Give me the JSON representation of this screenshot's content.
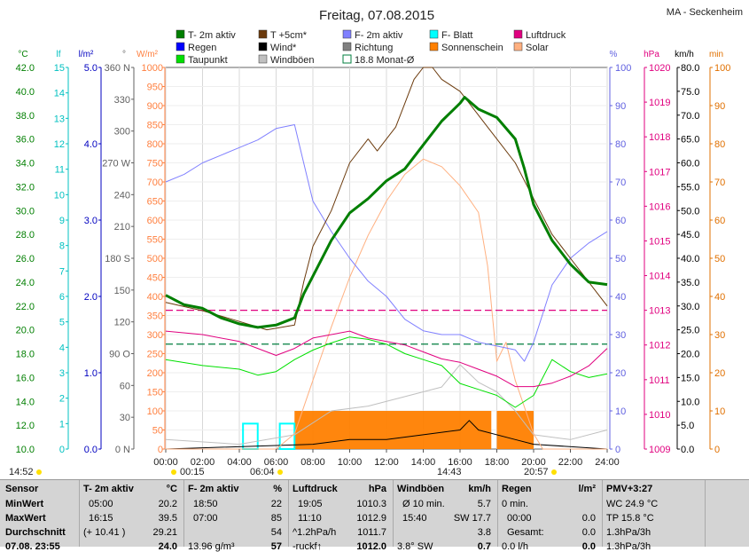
{
  "header": {
    "date": "Freitag, 07.08.2015",
    "location": "MA - Seckenheim"
  },
  "legend": [
    {
      "label": "T- 2m aktiv",
      "color": "#007f00",
      "kind": "fill"
    },
    {
      "label": "T +5cm*",
      "color": "#6b3a0c",
      "kind": "fill"
    },
    {
      "label": "F- 2m aktiv",
      "color": "#8080ff",
      "kind": "fill"
    },
    {
      "label": "F- Blatt",
      "color": "#00ffff",
      "kind": "fill"
    },
    {
      "label": "Luftdruck",
      "color": "#e0007f",
      "kind": "fill"
    },
    {
      "label": "Regen",
      "color": "#0000ff",
      "kind": "fill"
    },
    {
      "label": "Wind*",
      "color": "#000000",
      "kind": "fill"
    },
    {
      "label": "Richtung",
      "color": "#808080",
      "kind": "fill"
    },
    {
      "label": "Sonnenschein",
      "color": "#ff8000",
      "kind": "fill"
    },
    {
      "label": "Solar",
      "color": "#ffb080",
      "kind": "fill"
    },
    {
      "label": "Taupunkt",
      "color": "#00e000",
      "kind": "fill"
    },
    {
      "label": "Windböen",
      "color": "#c0c0c0",
      "kind": "fill"
    },
    {
      "label": "18.8 Monat-Ø",
      "color": "#007f3f",
      "kind": "outline"
    }
  ],
  "axes": {
    "temp": {
      "unit": "°C",
      "ticks": [
        "42.0",
        "40.0",
        "38.0",
        "36.0",
        "34.0",
        "32.0",
        "30.0",
        "28.0",
        "26.0",
        "24.0",
        "22.0",
        "20.0",
        "18.0",
        "16.0",
        "14.0",
        "12.0",
        "10.0"
      ],
      "color": "#007f00"
    },
    "lf": {
      "unit": "lf",
      "ticks": [
        "15",
        "14",
        "13",
        "12",
        "11",
        "10",
        "9",
        "8",
        "7",
        "6",
        "5",
        "4",
        "3",
        "2",
        "1",
        "0"
      ],
      "color": "#00c0c0"
    },
    "rain": {
      "unit": "l/m²",
      "ticks": [
        "5.0",
        "4.0",
        "3.0",
        "2.0",
        "1.0",
        "0.0"
      ],
      "color": "#0000c0"
    },
    "dir": {
      "unit": "°",
      "ticks": [
        "360 N",
        "330",
        "300",
        "270 W",
        "240",
        "210",
        "180 S",
        "150",
        "120",
        "90 O",
        "60",
        "30",
        "0 N"
      ],
      "color": "#606060"
    },
    "solar": {
      "unit": "W/m²",
      "ticks": [
        "1000",
        "950",
        "900",
        "850",
        "800",
        "750",
        "700",
        "650",
        "600",
        "550",
        "500",
        "450",
        "400",
        "350",
        "300",
        "250",
        "200",
        "150",
        "100",
        "50",
        "0"
      ],
      "color": "#ff8040"
    },
    "hum": {
      "unit": "%",
      "ticks": [
        "100",
        "90",
        "80",
        "70",
        "60",
        "50",
        "40",
        "30",
        "20",
        "10",
        "0"
      ],
      "color": "#6060e0"
    },
    "press": {
      "unit": "hPa",
      "ticks": [
        "1020",
        "1019",
        "1018",
        "1017",
        "1016",
        "1015",
        "1014",
        "1013",
        "1012",
        "1011",
        "1010",
        "1009"
      ],
      "color": "#e0007f"
    },
    "wind": {
      "unit": "km/h",
      "ticks": [
        "80.0",
        "75.0",
        "70.0",
        "65.0",
        "60.0",
        "55.0",
        "50.0",
        "45.0",
        "40.0",
        "35.0",
        "30.0",
        "25.0",
        "20.0",
        "15.0",
        "10.0",
        "5.0",
        "0.0"
      ],
      "color": "#000000"
    },
    "min": {
      "unit": "min",
      "ticks": [
        "100",
        "90",
        "80",
        "70",
        "60",
        "50",
        "40",
        "30",
        "20",
        "10",
        "0"
      ],
      "color": "#e07000"
    }
  },
  "x_ticks": [
    "00:00",
    "02:00",
    "04:00",
    "06:00",
    "08:00",
    "10:00",
    "12:00",
    "14:00",
    "16:00",
    "18:00",
    "20:00",
    "22:00",
    "24:00"
  ],
  "markers": {
    "left_time": "14:52",
    "m1": "00:15",
    "m2": "06:04",
    "m3": "14:43",
    "m4": "20:57"
  },
  "chart_data": {
    "type": "line",
    "title": "Freitag, 07.08.2015",
    "x_unit": "hours",
    "xlim": [
      0,
      24
    ],
    "series": [
      {
        "name": "T- 2m aktiv",
        "unit": "°C",
        "color": "#007f00",
        "width": 3,
        "points": [
          [
            0,
            22.9
          ],
          [
            1,
            22.1
          ],
          [
            2,
            21.8
          ],
          [
            3,
            21.0
          ],
          [
            4,
            20.5
          ],
          [
            5,
            20.2
          ],
          [
            6,
            20.4
          ],
          [
            7,
            21.0
          ],
          [
            7.5,
            23.0
          ],
          [
            8,
            24.5
          ],
          [
            9,
            27.5
          ],
          [
            10,
            29.8
          ],
          [
            11,
            31.0
          ],
          [
            12,
            32.5
          ],
          [
            13,
            33.5
          ],
          [
            14,
            35.5
          ],
          [
            15,
            37.5
          ],
          [
            16,
            39.0
          ],
          [
            16.25,
            39.5
          ],
          [
            17,
            38.5
          ],
          [
            18,
            37.8
          ],
          [
            19,
            36.0
          ],
          [
            19.5,
            33.5
          ],
          [
            20,
            30.5
          ],
          [
            21,
            27.5
          ],
          [
            22,
            25.5
          ],
          [
            23,
            24.0
          ],
          [
            24,
            23.8
          ]
        ]
      },
      {
        "name": "T +5cm*",
        "unit": "°C",
        "color": "#6b3a0c",
        "width": 1,
        "points": [
          [
            0,
            22.3
          ],
          [
            2,
            21.6
          ],
          [
            4,
            20.7
          ],
          [
            5.5,
            20.0
          ],
          [
            7,
            20.4
          ],
          [
            7.5,
            24
          ],
          [
            8,
            27
          ],
          [
            9,
            30
          ],
          [
            10,
            34
          ],
          [
            11,
            36
          ],
          [
            11.5,
            35
          ],
          [
            12,
            36
          ],
          [
            12.5,
            37
          ],
          [
            13,
            39
          ],
          [
            13.5,
            41
          ],
          [
            14,
            43
          ],
          [
            14.5,
            43
          ],
          [
            15,
            41
          ],
          [
            16,
            40
          ],
          [
            17,
            38
          ],
          [
            17.5,
            37
          ],
          [
            18,
            36
          ],
          [
            19,
            34
          ],
          [
            20,
            31
          ],
          [
            21,
            28
          ],
          [
            22,
            26
          ],
          [
            23,
            24
          ],
          [
            24,
            22
          ]
        ]
      },
      {
        "name": "F- 2m aktiv",
        "unit": "%",
        "color": "#8080ff",
        "width": 1,
        "points": [
          [
            0,
            70
          ],
          [
            1,
            72
          ],
          [
            2,
            75
          ],
          [
            3,
            77
          ],
          [
            4,
            79
          ],
          [
            5,
            81
          ],
          [
            6,
            84
          ],
          [
            7,
            85
          ],
          [
            7.5,
            75
          ],
          [
            8,
            65
          ],
          [
            9,
            57
          ],
          [
            10,
            50
          ],
          [
            11,
            44
          ],
          [
            12,
            40
          ],
          [
            13,
            34
          ],
          [
            14,
            31
          ],
          [
            15,
            30
          ],
          [
            16,
            30
          ],
          [
            17,
            28
          ],
          [
            18,
            27
          ],
          [
            19,
            26
          ],
          [
            19.5,
            23
          ],
          [
            20,
            28
          ],
          [
            21,
            43
          ],
          [
            22,
            50
          ],
          [
            23,
            54
          ],
          [
            24,
            57
          ]
        ]
      },
      {
        "name": "Taupunkt",
        "unit": "°C",
        "color": "#00e000",
        "width": 1,
        "points": [
          [
            0,
            17.5
          ],
          [
            2,
            17.0
          ],
          [
            4,
            16.7
          ],
          [
            5,
            16.2
          ],
          [
            6,
            16.5
          ],
          [
            7,
            17.5
          ],
          [
            8,
            18.3
          ],
          [
            9,
            18.9
          ],
          [
            10,
            19.4
          ],
          [
            11,
            19.2
          ],
          [
            12,
            18.8
          ],
          [
            13,
            18.0
          ],
          [
            14,
            17.5
          ],
          [
            15,
            17.0
          ],
          [
            16,
            15.5
          ],
          [
            17,
            15.0
          ],
          [
            18,
            14.5
          ],
          [
            19,
            13.5
          ],
          [
            20,
            14.5
          ],
          [
            21,
            17.5
          ],
          [
            22,
            16.5
          ],
          [
            23,
            16.0
          ],
          [
            24,
            16.3
          ]
        ]
      },
      {
        "name": "Luftdruck",
        "unit": "hPa",
        "color": "#e0007f",
        "width": 1,
        "points": [
          [
            0,
            1012.4
          ],
          [
            2,
            1012.3
          ],
          [
            4,
            1012.1
          ],
          [
            5,
            1011.9
          ],
          [
            6,
            1011.7
          ],
          [
            7,
            1011.9
          ],
          [
            8,
            1012.2
          ],
          [
            9,
            1012.3
          ],
          [
            10,
            1012.4
          ],
          [
            11,
            1012.2
          ],
          [
            12,
            1012.1
          ],
          [
            13,
            1012.0
          ],
          [
            14,
            1011.8
          ],
          [
            15,
            1011.6
          ],
          [
            16,
            1011.5
          ],
          [
            17,
            1011.3
          ],
          [
            18,
            1011.1
          ],
          [
            19,
            1010.8
          ],
          [
            20,
            1010.8
          ],
          [
            21,
            1010.9
          ],
          [
            22,
            1011.1
          ],
          [
            23,
            1011.4
          ],
          [
            24,
            1011.9
          ]
        ]
      },
      {
        "name": "Solar",
        "unit": "W/m²",
        "color": "#ffb080",
        "width": 1,
        "points": [
          [
            0,
            0
          ],
          [
            6,
            0
          ],
          [
            7,
            40
          ],
          [
            8,
            180
          ],
          [
            9,
            320
          ],
          [
            10,
            450
          ],
          [
            11,
            560
          ],
          [
            12,
            650
          ],
          [
            13,
            720
          ],
          [
            14,
            760
          ],
          [
            15,
            740
          ],
          [
            16,
            690
          ],
          [
            17,
            620
          ],
          [
            17.5,
            480
          ],
          [
            18,
            230
          ],
          [
            18.5,
            280
          ],
          [
            19,
            180
          ],
          [
            20,
            40
          ],
          [
            20.5,
            0
          ],
          [
            24,
            0
          ]
        ]
      },
      {
        "name": "Windböen",
        "unit": "km/h",
        "color": "#c0c0c0",
        "width": 1,
        "points": [
          [
            0,
            2
          ],
          [
            4,
            1
          ],
          [
            7,
            3
          ],
          [
            9,
            8
          ],
          [
            11,
            9
          ],
          [
            13,
            11
          ],
          [
            15,
            13
          ],
          [
            16,
            17.7
          ],
          [
            17,
            14
          ],
          [
            18,
            12
          ],
          [
            19,
            8
          ],
          [
            20,
            3
          ],
          [
            22,
            2
          ],
          [
            24,
            4
          ]
        ]
      },
      {
        "name": "Wind*",
        "unit": "km/h",
        "color": "#000000",
        "width": 1,
        "points": [
          [
            0,
            0
          ],
          [
            8,
            1
          ],
          [
            10,
            2
          ],
          [
            12,
            2
          ],
          [
            14,
            3
          ],
          [
            16,
            4
          ],
          [
            16.5,
            6
          ],
          [
            17,
            4
          ],
          [
            19,
            2
          ],
          [
            20,
            1
          ],
          [
            24,
            0
          ]
        ]
      }
    ],
    "reference_lines": [
      {
        "name": "Luftdruck Monat-Ø",
        "unit": "hPa",
        "value": 1013.0,
        "color": "#e0007f"
      },
      {
        "name": "18.8 Monat-Ø",
        "unit": "°C",
        "value": 18.8,
        "color": "#007f3f"
      }
    ],
    "sunshine": {
      "name": "Sonnenschein",
      "unit": "min",
      "color": "#ff8000",
      "intervals": [
        [
          7,
          17.7
        ],
        [
          18,
          20.0
        ]
      ],
      "level": 10
    },
    "leaf_wetness": {
      "name": "F- Blatt",
      "unit": "lf",
      "color": "#00ffff",
      "intervals": [
        [
          4.2,
          5.0
        ],
        [
          6.2,
          7.0
        ]
      ],
      "level": 1
    }
  },
  "table": {
    "sensor": {
      "title": "Sensor",
      "rows": [
        "MinWert",
        "MaxWert",
        "Durchschnitt",
        "07.08. 23:55"
      ]
    },
    "temp": {
      "title": "T- 2m aktiv",
      "unit": "°C",
      "rows": [
        [
          "05:00",
          "20.2"
        ],
        [
          "16:15",
          "39.5"
        ],
        [
          "(+ 10.41 )",
          "29.21"
        ],
        [
          "",
          "24.0"
        ]
      ]
    },
    "hum": {
      "title": "F- 2m aktiv",
      "unit": "%",
      "rows": [
        [
          "18:50",
          "22"
        ],
        [
          "07:00",
          "85"
        ],
        [
          "",
          "54"
        ],
        [
          "13.96 g/m³",
          "57"
        ]
      ]
    },
    "press": {
      "title": "Luftdruck",
      "unit": "hPa",
      "rows": [
        [
          "19:05",
          "1010.3"
        ],
        [
          "11:10",
          "1012.9"
        ],
        [
          "^1.2hPa/h",
          "1011.7"
        ],
        [
          "-ruckf↑",
          "1012.0"
        ]
      ]
    },
    "wind": {
      "title": "Windböen",
      "unit": "km/h",
      "rows": [
        [
          "Ø 10 min.",
          "5.7"
        ],
        [
          "15:40",
          "SW 17.7"
        ],
        [
          "",
          "3.8"
        ],
        [
          "3.8° SW",
          "0.7"
        ]
      ]
    },
    "rain": {
      "title": "Regen",
      "unit": "l/m²",
      "rows": [
        [
          "0 min.",
          ""
        ],
        [
          "00:00",
          "0.0"
        ],
        [
          "Gesamt:",
          "0.0"
        ],
        [
          "0.0 l/h",
          "0.0"
        ]
      ]
    },
    "pmv": {
      "title": "PMV+3:27",
      "rows": [
        "WC 24.9 °C",
        "TP 15.8 °C",
        "1.3hPa/3h",
        "1.3hPa/3h"
      ]
    }
  }
}
